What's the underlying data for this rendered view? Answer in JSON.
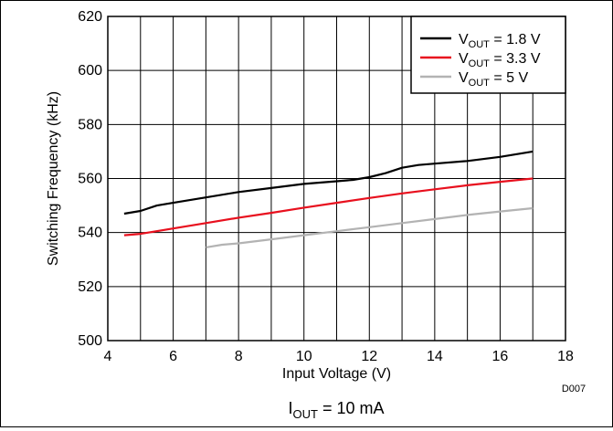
{
  "chart_data": {
    "type": "line",
    "xlabel": "Input Voltage (V)",
    "ylabel": "Switching Frequency (kHz)",
    "xlim": [
      4,
      18
    ],
    "ylim": [
      500,
      620
    ],
    "xticks": [
      "4",
      "6",
      "8",
      "10",
      "12",
      "14",
      "16",
      "18"
    ],
    "yticks": [
      "500",
      "520",
      "540",
      "560",
      "580",
      "600",
      "620"
    ],
    "x_grid_step": 1,
    "y_grid_step": 20,
    "grid": true,
    "legend_position": "top-right",
    "footnote_main": "I",
    "footnote_sub": "OUT",
    "footnote_rest": " = 10 mA",
    "figure_id": "D007",
    "series": [
      {
        "legend_main": "V",
        "legend_sub": "OUT",
        "legend_rest": " = 1.8 V",
        "color": "#000000",
        "x": [
          4.5,
          5,
          5.5,
          6,
          7,
          8,
          9,
          10,
          11,
          11.5,
          12,
          12.5,
          13,
          13.5,
          14,
          15,
          16,
          17
        ],
        "y": [
          547,
          548,
          550,
          551,
          553,
          555,
          556.5,
          558,
          559,
          559.5,
          560.5,
          562,
          564,
          565,
          565.5,
          566.5,
          568,
          570
        ]
      },
      {
        "legend_main": "V",
        "legend_sub": "OUT",
        "legend_rest": " = 3.3 V",
        "color": "#e8101e",
        "x": [
          4.5,
          5,
          6,
          7,
          8,
          9,
          10,
          11,
          12,
          13,
          14,
          15,
          16,
          17
        ],
        "y": [
          539,
          539.5,
          541.5,
          543.5,
          545.5,
          547.3,
          549.2,
          551,
          552.8,
          554.5,
          556,
          557.5,
          558.8,
          560
        ]
      },
      {
        "legend_main": "V",
        "legend_sub": "OUT",
        "legend_rest": " = 5 V",
        "color": "#b3b3b3",
        "x": [
          7,
          7.5,
          8,
          9,
          10,
          11,
          12,
          13,
          14,
          15,
          16,
          17
        ],
        "y": [
          534.5,
          535.5,
          536,
          537.5,
          539,
          540.5,
          542,
          543.5,
          545,
          546.5,
          547.8,
          549
        ]
      }
    ]
  }
}
